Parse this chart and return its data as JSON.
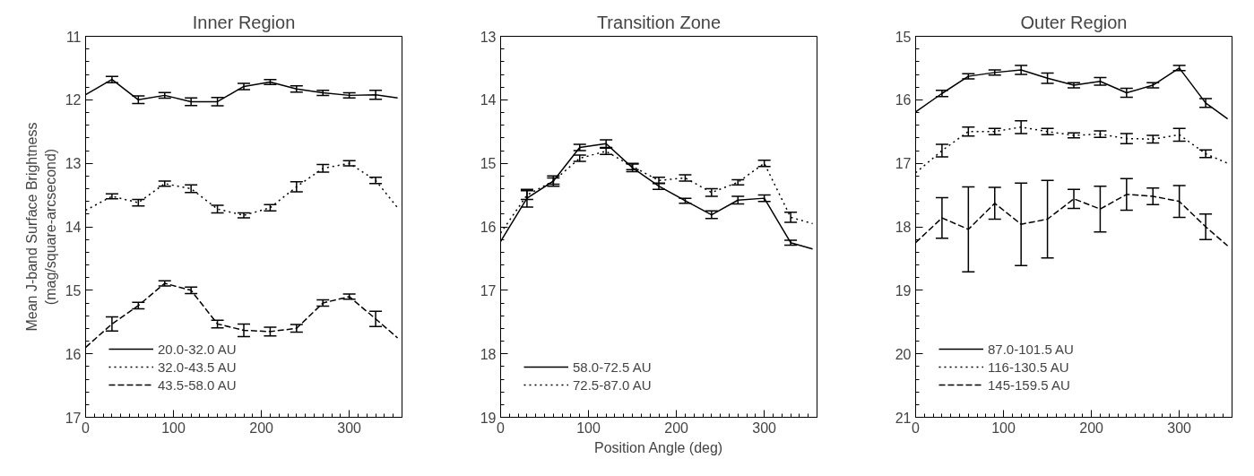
{
  "chart_data": [
    {
      "type": "line",
      "title": "Inner Region",
      "ylabel": "Mean J-band Surface Brightness\n(mag/square-arcsecond)",
      "x": [
        0,
        30,
        60,
        90,
        120,
        150,
        180,
        210,
        240,
        270,
        300,
        330,
        355
      ],
      "xlim": [
        0,
        360
      ],
      "xticks": [
        0,
        100,
        200,
        300
      ],
      "ylim": [
        17,
        11
      ],
      "yticks": [
        11,
        12,
        13,
        14,
        15,
        16,
        17
      ],
      "grid": false,
      "legend": "bottom left",
      "marker": "none",
      "series": [
        {
          "name": "20.0-32.0 AU",
          "color": "#000000",
          "line_style": "solid",
          "values": [
            11.92,
            11.68,
            12.0,
            11.93,
            12.03,
            12.03,
            11.79,
            11.72,
            11.83,
            11.89,
            11.93,
            11.92,
            11.97
          ],
          "errors": [
            null,
            0.05,
            0.06,
            0.045,
            0.06,
            0.065,
            0.05,
            0.04,
            0.05,
            0.04,
            0.04,
            0.07,
            null
          ]
        },
        {
          "name": "32.0-43.5 AU",
          "color": "#000000",
          "line_style": "dotted",
          "values": [
            13.74,
            13.52,
            13.62,
            13.32,
            13.4,
            13.72,
            13.82,
            13.7,
            13.37,
            13.08,
            13.0,
            13.27,
            13.7
          ],
          "errors": [
            null,
            0.04,
            0.05,
            0.04,
            0.06,
            0.06,
            0.04,
            0.05,
            0.08,
            0.06,
            0.04,
            0.05,
            null
          ]
        },
        {
          "name": "43.5-58.0 AU",
          "color": "#000000",
          "line_style": "dashed",
          "values": [
            15.9,
            15.53,
            15.24,
            14.89,
            15.0,
            15.53,
            15.63,
            15.65,
            15.6,
            15.2,
            15.1,
            15.45,
            15.75
          ],
          "errors": [
            null,
            0.11,
            0.05,
            0.04,
            0.05,
            0.06,
            0.1,
            0.07,
            0.06,
            0.05,
            0.04,
            0.12,
            null
          ]
        }
      ]
    },
    {
      "type": "line",
      "title": "Transition Zone",
      "xlabel": "Position Angle (deg)",
      "x": [
        0,
        30,
        60,
        90,
        120,
        150,
        180,
        210,
        240,
        270,
        300,
        330,
        355
      ],
      "xlim": [
        0,
        360
      ],
      "xticks": [
        0,
        100,
        200,
        300
      ],
      "ylim": [
        19,
        13
      ],
      "yticks": [
        13,
        14,
        15,
        16,
        17,
        18,
        19
      ],
      "grid": false,
      "legend": "bottom left",
      "marker": "none",
      "series": [
        {
          "name": "58.0-72.5 AU",
          "color": "#000000",
          "line_style": "solid",
          "values": [
            16.23,
            15.55,
            15.28,
            14.75,
            14.69,
            15.07,
            15.36,
            15.59,
            15.81,
            15.58,
            15.55,
            16.25,
            16.35
          ],
          "errors": [
            null,
            0.14,
            0.08,
            0.05,
            0.06,
            0.06,
            0.05,
            0.04,
            0.06,
            0.06,
            0.05,
            0.04,
            null
          ]
        },
        {
          "name": "72.5-87.0 AU",
          "color": "#000000",
          "line_style": "dotted",
          "values": [
            16.1,
            15.5,
            15.28,
            14.92,
            14.81,
            15.05,
            15.27,
            15.23,
            15.46,
            15.3,
            15.0,
            15.85,
            15.95
          ],
          "errors": [
            null,
            0.07,
            0.05,
            0.05,
            0.05,
            0.05,
            0.05,
            0.05,
            0.06,
            0.04,
            0.05,
            0.08,
            null
          ]
        }
      ]
    },
    {
      "type": "line",
      "title": "Outer Region",
      "x": [
        0,
        30,
        60,
        90,
        120,
        150,
        180,
        210,
        240,
        270,
        300,
        330,
        355
      ],
      "xlim": [
        0,
        360
      ],
      "xticks": [
        0,
        100,
        200,
        300
      ],
      "ylim": [
        21,
        15
      ],
      "yticks": [
        15,
        16,
        17,
        18,
        19,
        20,
        21
      ],
      "grid": false,
      "legend": "bottom left",
      "marker": "none",
      "series": [
        {
          "name": "87.0-101.5 AU",
          "color": "#000000",
          "line_style": "solid",
          "values": [
            16.19,
            15.9,
            15.63,
            15.57,
            15.53,
            15.66,
            15.77,
            15.71,
            15.89,
            15.77,
            15.5,
            16.05,
            16.3
          ],
          "errors": [
            null,
            0.05,
            0.04,
            0.04,
            0.07,
            0.08,
            0.04,
            0.06,
            0.07,
            0.04,
            0.04,
            0.07,
            null
          ]
        },
        {
          "name": "116-130.5 AU",
          "color": "#000000",
          "line_style": "dotted",
          "values": [
            17.15,
            16.8,
            16.5,
            16.5,
            16.43,
            16.5,
            16.56,
            16.54,
            16.61,
            16.62,
            16.55,
            16.85,
            17.0
          ],
          "errors": [
            null,
            0.1,
            0.07,
            0.05,
            0.1,
            0.05,
            0.04,
            0.05,
            0.08,
            0.06,
            0.1,
            0.06,
            null
          ]
        },
        {
          "name": "145-159.5 AU",
          "color": "#000000",
          "line_style": "dashed",
          "values": [
            18.25,
            17.86,
            18.04,
            17.63,
            17.96,
            17.88,
            17.56,
            17.72,
            17.49,
            17.52,
            17.6,
            18.0,
            18.3
          ],
          "errors": [
            null,
            0.32,
            0.67,
            0.25,
            0.65,
            0.61,
            0.15,
            0.36,
            0.25,
            0.13,
            0.25,
            0.2,
            null
          ]
        }
      ]
    }
  ]
}
